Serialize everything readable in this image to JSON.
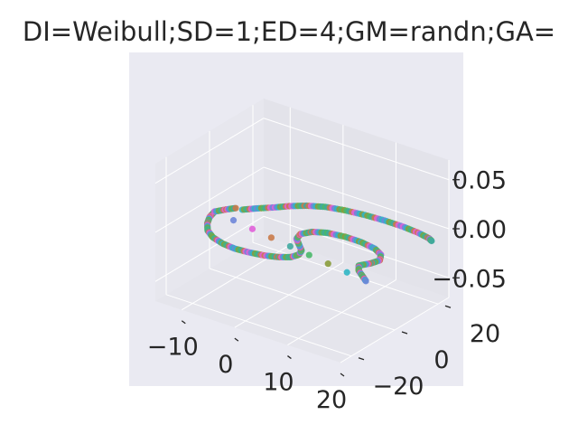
{
  "chart_data": {
    "type": "scatter",
    "projection": "3d",
    "title": "DI=Weibull;SD=1;ED=4;GM=randn;GA=",
    "xlabel": "",
    "ylabel": "",
    "zlabel": "",
    "xlim": [
      -15,
      20
    ],
    "ylim": [
      -25,
      25
    ],
    "zlim": [
      -0.07,
      0.07
    ],
    "x_ticks": [
      {
        "value": -10,
        "label": "−10"
      },
      {
        "value": 0,
        "label": "0"
      },
      {
        "value": 10,
        "label": "10"
      },
      {
        "value": 20,
        "label": "20"
      }
    ],
    "y_ticks": [
      {
        "value": -20,
        "label": "−20"
      },
      {
        "value": 0,
        "label": "0"
      },
      {
        "value": 20,
        "label": "20"
      }
    ],
    "z_ticks": [
      {
        "value": -0.05,
        "label": "−0.05"
      },
      {
        "value": 0.0,
        "label": "0.00"
      },
      {
        "value": 0.05,
        "label": "0.05"
      }
    ],
    "grid": true,
    "legend": "none",
    "style": {
      "pane_color": "#e5e5ec",
      "grid_color": "#ffffff",
      "marker_palette": [
        "#e05fd8",
        "#3fa9a0",
        "#8a9c3c",
        "#6e86d8",
        "#c97a4a",
        "#49b86a",
        "#2fb5c4"
      ]
    },
    "series": [
      {
        "points": [
          [
            -12.0,
            -5.0,
            0
          ],
          [
            -11.5,
            -8.5,
            0
          ],
          [
            -10.5,
            -12.0,
            0
          ],
          [
            -9.0,
            -15.5,
            0
          ],
          [
            -7.0,
            -18.0,
            0
          ],
          [
            -4.5,
            -19.5,
            0
          ],
          [
            -2.0,
            -20.0,
            0
          ],
          [
            0.5,
            -19.5,
            0
          ],
          [
            3.0,
            -18.5,
            0
          ],
          [
            5.0,
            -17.0,
            0
          ],
          [
            6.5,
            -15.0,
            0
          ],
          [
            7.0,
            -12.5,
            0
          ],
          [
            6.5,
            -10.0,
            0
          ],
          [
            5.0,
            -7.5,
            0
          ],
          [
            3.5,
            -5.0,
            0
          ],
          [
            3.0,
            -2.0,
            0
          ],
          [
            4.0,
            1.0,
            0
          ],
          [
            6.0,
            3.0,
            0
          ],
          [
            9.0,
            4.0,
            0
          ],
          [
            12.0,
            4.0,
            0
          ],
          [
            15.0,
            3.0,
            0
          ],
          [
            17.0,
            1.0,
            0
          ],
          [
            18.0,
            -2.0,
            0
          ],
          [
            17.5,
            -5.0,
            0
          ],
          [
            16.5,
            -8.0,
            0
          ],
          [
            17.5,
            -10.5,
            0
          ],
          [
            19.0,
            -12.5,
            0
          ],
          [
            20.5,
            -14.5,
            0
          ],
          [
            -12.0,
            -5.0,
            0
          ],
          [
            -11.0,
            -2.0,
            0
          ],
          [
            -10.0,
            0.5,
            0
          ]
        ]
      },
      {
        "points": [
          [
            -9.0,
            0.5,
            0
          ],
          [
            -7.5,
            3.5,
            0
          ],
          [
            -5.5,
            7.0,
            0
          ],
          [
            -4.0,
            10.0,
            0
          ],
          [
            -2.0,
            13.0,
            0
          ],
          [
            0.5,
            15.5,
            0
          ],
          [
            3.5,
            17.0,
            0
          ],
          [
            7.0,
            18.0,
            0
          ],
          [
            10.5,
            18.5,
            0
          ],
          [
            14.0,
            18.5,
            0
          ],
          [
            17.0,
            18.0,
            0
          ],
          [
            19.5,
            17.0,
            0
          ],
          [
            20.5,
            16.0,
            0
          ]
        ]
      }
    ]
  }
}
